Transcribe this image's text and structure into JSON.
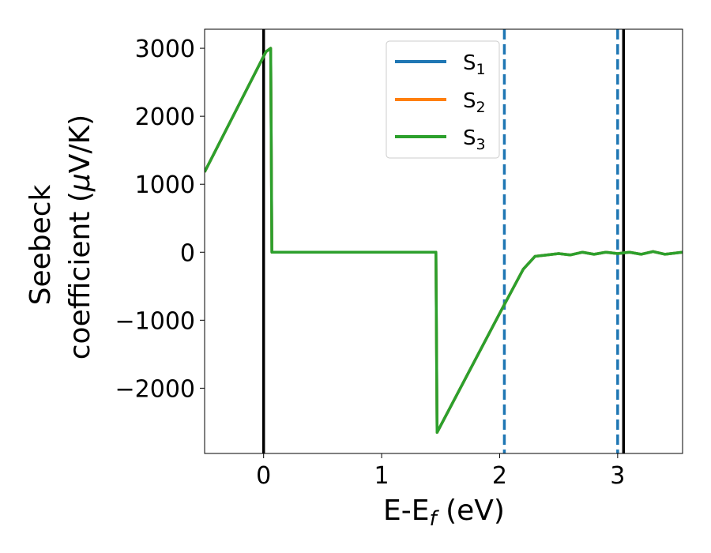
{
  "chart_data": {
    "type": "line",
    "xlabel": "E-E",
    "xlabel_sub": "f",
    "xlabel_unit": " (eV)",
    "ylabel_line1": "Seebeck",
    "ylabel_line2_pre": "coefficient  (",
    "ylabel_mu": "μ",
    "ylabel_line2_post": "V/K)",
    "xlim": [
      -0.5,
      3.55
    ],
    "ylim": [
      -2960,
      3280
    ],
    "x_ticks": [
      0,
      1,
      2,
      3
    ],
    "x_tick_labels": [
      "0",
      "1",
      "2",
      "3"
    ],
    "y_ticks": [
      3000,
      2000,
      1000,
      0,
      -1000,
      -2000
    ],
    "y_tick_labels": [
      "3000",
      "2000",
      "1000",
      "0",
      "−1000",
      "−2000"
    ],
    "grid": false,
    "legend_position": "top-center",
    "series": [
      {
        "name": "S",
        "sub": "1",
        "color": "#1f77b4",
        "x": [
          -0.5,
          0.02,
          0.06,
          0.07,
          1.46,
          1.47,
          2.0,
          2.2,
          2.3,
          2.4,
          2.5,
          2.6,
          2.7,
          2.8,
          2.9,
          3.0,
          3.1,
          3.2,
          3.3,
          3.4,
          3.55
        ],
        "y": [
          1180,
          2950,
          3000,
          0,
          0,
          -2650,
          -900,
          -250,
          -60,
          -40,
          -20,
          -40,
          0,
          -30,
          0,
          -20,
          0,
          -30,
          10,
          -30,
          0
        ]
      },
      {
        "name": "S",
        "sub": "2",
        "color": "#ff7f0e",
        "x": [
          -0.5,
          0.02,
          0.06,
          0.07,
          1.46,
          1.47,
          2.0,
          2.2,
          2.3,
          2.4,
          2.5,
          2.6,
          2.7,
          2.8,
          2.9,
          3.0,
          3.1,
          3.2,
          3.3,
          3.4,
          3.55
        ],
        "y": [
          1180,
          2950,
          3000,
          0,
          0,
          -2650,
          -900,
          -250,
          -60,
          -40,
          -20,
          -40,
          0,
          -30,
          0,
          -20,
          0,
          -30,
          10,
          -30,
          0
        ]
      },
      {
        "name": "S",
        "sub": "3",
        "color": "#2ca02c",
        "x": [
          -0.5,
          0.02,
          0.06,
          0.07,
          1.46,
          1.47,
          2.0,
          2.2,
          2.3,
          2.4,
          2.5,
          2.6,
          2.7,
          2.8,
          2.9,
          3.0,
          3.1,
          3.2,
          3.3,
          3.4,
          3.55
        ],
        "y": [
          1180,
          2950,
          3000,
          0,
          0,
          -2650,
          -900,
          -250,
          -60,
          -40,
          -20,
          -40,
          0,
          -30,
          0,
          -20,
          0,
          -30,
          10,
          -30,
          0
        ]
      }
    ],
    "vlines": [
      {
        "x": 0.0,
        "color": "#000000",
        "style": "solid"
      },
      {
        "x": 3.05,
        "color": "#000000",
        "style": "solid"
      },
      {
        "x": 2.04,
        "color": "#1f77b4",
        "style": "dashed"
      },
      {
        "x": 3.0,
        "color": "#1f77b4",
        "style": "dashed"
      }
    ]
  }
}
